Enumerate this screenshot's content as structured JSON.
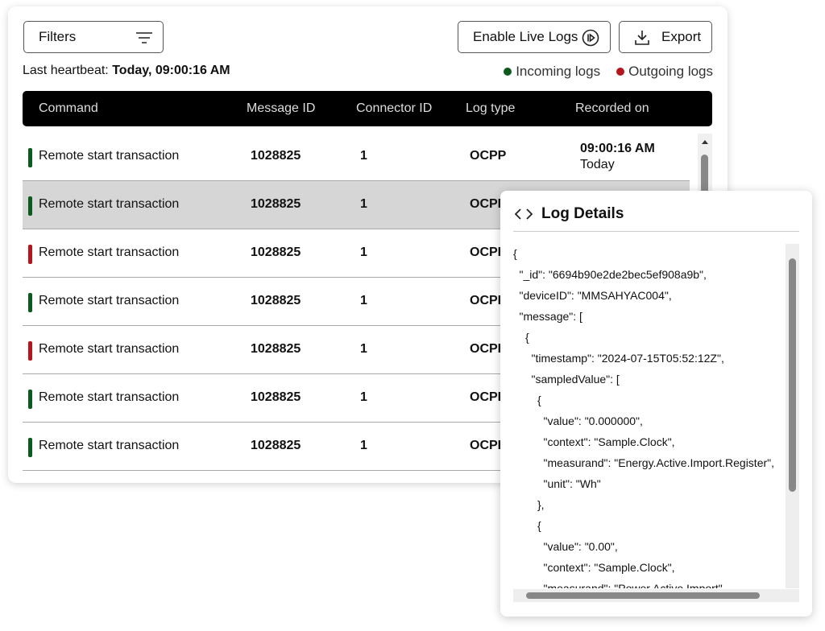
{
  "toolbar": {
    "filters": "Filters",
    "live_logs": "Enable Live Logs",
    "export": "Export"
  },
  "heartbeat": {
    "label": "Last heartbeat:",
    "value": "Today, 09:00:16 AM"
  },
  "legend": [
    {
      "label": "Incoming logs",
      "color": "#0d5a1f"
    },
    {
      "label": "Outgoing logs",
      "color": "#b3161c"
    }
  ],
  "table": {
    "columns": [
      "Command",
      "Message ID",
      "Connector ID",
      "Log type",
      "Recorded on"
    ],
    "rows": [
      {
        "command": "Remote start transaction",
        "message_id": "1028825",
        "connector_id": "1",
        "log_type": "OCPP",
        "recorded_time": "09:00:16 AM",
        "recorded_date": "Today",
        "color": "#0d5a1f"
      },
      {
        "command": "Remote start transaction",
        "message_id": "1028825",
        "connector_id": "1",
        "log_type": "OCPP",
        "color": "#0d5a1f",
        "selected": true
      },
      {
        "command": "Remote start transaction",
        "message_id": "1028825",
        "connector_id": "1",
        "log_type": "OCPP",
        "color": "#b3161c"
      },
      {
        "command": "Remote start transaction",
        "message_id": "1028825",
        "connector_id": "1",
        "log_type": "OCPP",
        "color": "#0d5a1f"
      },
      {
        "command": "Remote start transaction",
        "message_id": "1028825",
        "connector_id": "1",
        "log_type": "OCPP",
        "color": "#b3161c"
      },
      {
        "command": "Remote start transaction",
        "message_id": "1028825",
        "connector_id": "1",
        "log_type": "OCPP",
        "color": "#0d5a1f"
      },
      {
        "command": "Remote start transaction",
        "message_id": "1028825",
        "connector_id": "1",
        "log_type": "OCPP",
        "color": "#0d5a1f"
      }
    ]
  },
  "log_details": {
    "title": "Log Details",
    "lines": [
      "{",
      "\"_id\": \"6694b90e2de2bec5ef908a9b\",",
      "\"deviceID\": \"MMSAHYAC004\",",
      "\"message\": [",
      "{",
      "\"timestamp\": \"2024-07-15T05:52:12Z\",",
      "\"sampledValue\": [",
      "{",
      "\"value\": \"0.000000\",",
      "\"context\": \"Sample.Clock\",",
      "\"measurand\": \"Energy.Active.Import.Register\",",
      "\"unit\": \"Wh\"",
      "},",
      "{",
      "\"value\": \"0.00\",",
      "\"context\": \"Sample.Clock\",",
      "\"measurand\": \"Power.Active.Import\","
    ]
  }
}
